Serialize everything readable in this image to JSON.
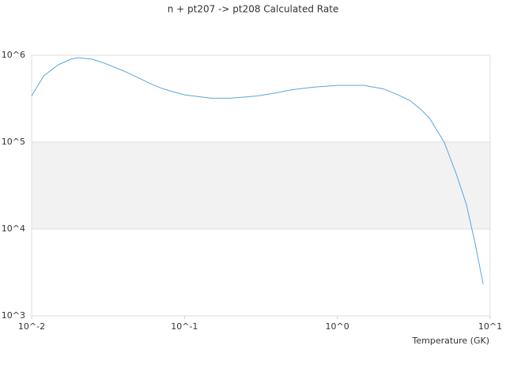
{
  "chart_data": {
    "type": "line",
    "title": "n + pt207 -> pt208 Calculated Rate",
    "x_label": "Temperature (GK)",
    "x_log": true,
    "y_log": true,
    "grid": true,
    "xlim": [
      0.01,
      10
    ],
    "ylim": [
      1000,
      1000000
    ],
    "xticks": [
      {
        "value": 0.01,
        "label": "10^-2"
      },
      {
        "value": 0.1,
        "label": "10^-1"
      },
      {
        "value": 1,
        "label": "10^0"
      },
      {
        "value": 10,
        "label": "10^1"
      }
    ],
    "yticks": [
      {
        "value": 1000,
        "label": "10^3"
      },
      {
        "value": 10000,
        "label": "10^4"
      },
      {
        "value": 100000,
        "label": "10^5"
      },
      {
        "value": 1000000,
        "label": "10^6"
      }
    ],
    "x": [
      0.01,
      0.012,
      0.015,
      0.018,
      0.02,
      0.025,
      0.03,
      0.04,
      0.05,
      0.06,
      0.07,
      0.08,
      0.1,
      0.15,
      0.2,
      0.3,
      0.4,
      0.5,
      0.7,
      1,
      1.5,
      2,
      2.5,
      3,
      3.5,
      4,
      5,
      6,
      7,
      8,
      9
    ],
    "series": [
      {
        "color": "#5aa6e0",
        "values": [
          340000,
          580000,
          780000,
          900000,
          940000,
          900000,
          810000,
          660000,
          550000,
          470000,
          420000,
          390000,
          350000,
          320000,
          320000,
          340000,
          370000,
          400000,
          430000,
          450000,
          450000,
          410000,
          350000,
          300000,
          240000,
          190000,
          100000,
          43000,
          19000,
          6600,
          2300
        ]
      }
    ]
  }
}
